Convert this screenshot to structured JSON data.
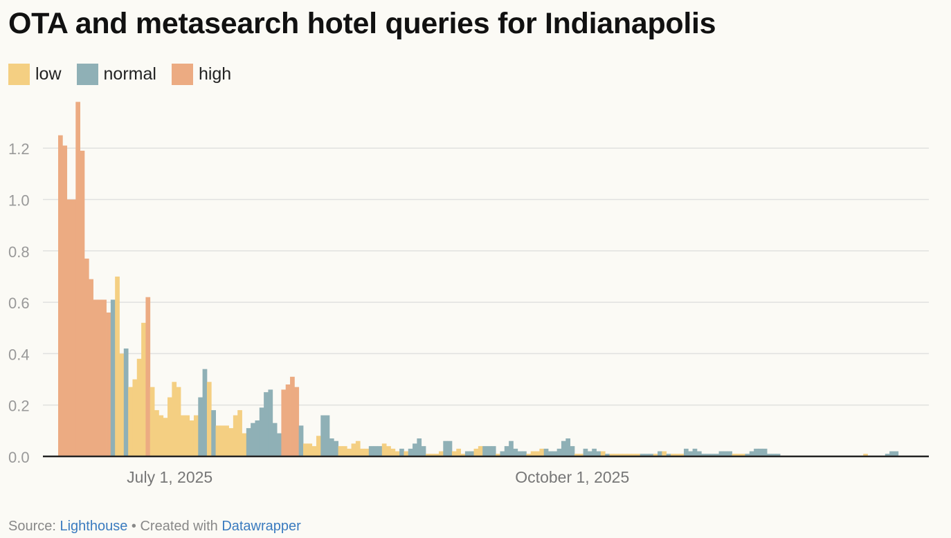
{
  "chart_data": {
    "type": "bar",
    "title": "OTA and metasearch hotel queries for Indianapolis",
    "legend": {
      "placement": "top-left",
      "items": [
        {
          "key": "low",
          "label": "low",
          "color": "#f4cf82"
        },
        {
          "key": "normal",
          "label": "normal",
          "color": "#8fb0b6"
        },
        {
          "key": "high",
          "label": "high",
          "color": "#ecab82"
        }
      ]
    },
    "ylim": [
      0,
      1.38
    ],
    "yticks": [
      {
        "value": 0,
        "label": "0.0"
      },
      {
        "value": 0.2,
        "label": "0.2"
      },
      {
        "value": 0.4,
        "label": "0.4"
      },
      {
        "value": 0.6,
        "label": "0.6"
      },
      {
        "value": 0.8,
        "label": "0.8"
      },
      {
        "value": 1.0,
        "label": "1.0"
      },
      {
        "value": 1.2,
        "label": "1.2"
      }
    ],
    "x_start_date": "2025-06-06",
    "x_end_date": "2025-12-21",
    "xticks": [
      {
        "date": "2025-07-01",
        "label": "July 1, 2025"
      },
      {
        "date": "2025-10-01",
        "label": "October 1, 2025"
      }
    ],
    "grid": true,
    "series": [
      {
        "key": "high",
        "start": "2025-06-06",
        "values": [
          1.25,
          1.21,
          1.0,
          1.0,
          1.38,
          1.19,
          0.77,
          0.69,
          0.61,
          0.61,
          0.61,
          0.56
        ]
      },
      {
        "key": "normal",
        "start": "2025-06-18",
        "values": [
          0.61
        ]
      },
      {
        "key": "low",
        "start": "2025-06-19",
        "values": [
          0.7,
          0.4
        ]
      },
      {
        "key": "normal",
        "start": "2025-06-21",
        "values": [
          0.42
        ]
      },
      {
        "key": "low",
        "start": "2025-06-22",
        "values": [
          0.27,
          0.3,
          0.38,
          0.52
        ]
      },
      {
        "key": "high",
        "start": "2025-06-26",
        "values": [
          0.62
        ]
      },
      {
        "key": "low",
        "start": "2025-06-27",
        "values": [
          0.27,
          0.18,
          0.16,
          0.15,
          0.23,
          0.29,
          0.27,
          0.16,
          0.16,
          0.14,
          0.16
        ]
      },
      {
        "key": "normal",
        "start": "2025-07-08",
        "values": [
          0.23,
          0.34
        ]
      },
      {
        "key": "low",
        "start": "2025-07-10",
        "values": [
          0.29
        ]
      },
      {
        "key": "normal",
        "start": "2025-07-11",
        "values": [
          0.18
        ]
      },
      {
        "key": "low",
        "start": "2025-07-12",
        "values": [
          0.12,
          0.12,
          0.12,
          0.11,
          0.16,
          0.18,
          0.09
        ]
      },
      {
        "key": "normal",
        "start": "2025-07-19",
        "values": [
          0.11,
          0.13,
          0.14,
          0.19,
          0.25,
          0.26,
          0.13,
          0.09
        ]
      },
      {
        "key": "high",
        "start": "2025-07-27",
        "values": [
          0.26,
          0.28,
          0.31,
          0.27
        ]
      },
      {
        "key": "normal",
        "start": "2025-07-31",
        "values": [
          0.12
        ]
      },
      {
        "key": "low",
        "start": "2025-08-01",
        "values": [
          0.05,
          0.05,
          0.04,
          0.08
        ]
      },
      {
        "key": "normal",
        "start": "2025-08-05",
        "values": [
          0.16,
          0.16,
          0.07,
          0.06
        ]
      },
      {
        "key": "low",
        "start": "2025-08-09",
        "values": [
          0.04,
          0.04,
          0.03,
          0.05,
          0.06,
          0.03,
          0.03
        ]
      },
      {
        "key": "normal",
        "start": "2025-08-16",
        "values": [
          0.04,
          0.04,
          0.04
        ]
      },
      {
        "key": "low",
        "start": "2025-08-19",
        "values": [
          0.05,
          0.04,
          0.03,
          0.02
        ]
      },
      {
        "key": "normal",
        "start": "2025-08-23",
        "values": [
          0.03
        ]
      },
      {
        "key": "low",
        "start": "2025-08-24",
        "values": [
          0.02
        ]
      },
      {
        "key": "normal",
        "start": "2025-08-25",
        "values": [
          0.03,
          0.05,
          0.07,
          0.04
        ]
      },
      {
        "key": "low",
        "start": "2025-08-29",
        "values": [
          0.01,
          0.01,
          0.01,
          0.02
        ]
      },
      {
        "key": "normal",
        "start": "2025-09-02",
        "values": [
          0.06,
          0.06
        ]
      },
      {
        "key": "low",
        "start": "2025-09-04",
        "values": [
          0.02,
          0.03,
          0.01
        ]
      },
      {
        "key": "normal",
        "start": "2025-09-07",
        "values": [
          0.02,
          0.02
        ]
      },
      {
        "key": "low",
        "start": "2025-09-09",
        "values": [
          0.03,
          0.04
        ]
      },
      {
        "key": "normal",
        "start": "2025-09-11",
        "values": [
          0.04,
          0.04,
          0.04
        ]
      },
      {
        "key": "low",
        "start": "2025-09-14",
        "values": [
          0.01
        ]
      },
      {
        "key": "normal",
        "start": "2025-09-15",
        "values": [
          0.02,
          0.04,
          0.06,
          0.03,
          0.02,
          0.02
        ]
      },
      {
        "key": "low",
        "start": "2025-09-21",
        "values": [
          0.01,
          0.02,
          0.02,
          0.03
        ]
      },
      {
        "key": "normal",
        "start": "2025-09-25",
        "values": [
          0.03,
          0.02,
          0.02,
          0.03,
          0.06,
          0.07,
          0.04
        ]
      },
      {
        "key": "low",
        "start": "2025-10-02",
        "values": [
          0.01,
          0.01
        ]
      },
      {
        "key": "normal",
        "start": "2025-10-04",
        "values": [
          0.03,
          0.02,
          0.03,
          0.02
        ]
      },
      {
        "key": "low",
        "start": "2025-10-08",
        "values": [
          0.02
        ]
      },
      {
        "key": "normal",
        "start": "2025-10-09",
        "values": [
          0.01
        ]
      },
      {
        "key": "low",
        "start": "2025-10-10",
        "values": [
          0.01,
          0.01,
          0.01,
          0.01,
          0.01,
          0.01,
          0.01
        ]
      },
      {
        "key": "normal",
        "start": "2025-10-17",
        "values": [
          0.01,
          0.01,
          0.01
        ]
      },
      {
        "key": "low",
        "start": "2025-10-20",
        "values": [
          0.01
        ]
      },
      {
        "key": "normal",
        "start": "2025-10-21",
        "values": [
          0.02
        ]
      },
      {
        "key": "low",
        "start": "2025-10-22",
        "values": [
          0.02
        ]
      },
      {
        "key": "normal",
        "start": "2025-10-23",
        "values": [
          0.01
        ]
      },
      {
        "key": "low",
        "start": "2025-10-24",
        "values": [
          0.01,
          0.01,
          0.01
        ]
      },
      {
        "key": "normal",
        "start": "2025-10-27",
        "values": [
          0.03,
          0.02,
          0.03,
          0.02,
          0.01,
          0.01,
          0.01,
          0.01,
          0.02,
          0.02,
          0.02
        ]
      },
      {
        "key": "low",
        "start": "2025-11-07",
        "values": [
          0.01,
          0.01,
          0.01
        ]
      },
      {
        "key": "normal",
        "start": "2025-11-10",
        "values": [
          0.01,
          0.02,
          0.03,
          0.03,
          0.03,
          0.01,
          0.01,
          0.01
        ]
      },
      {
        "key": "low",
        "start": "2025-12-07",
        "values": [
          0.01
        ]
      },
      {
        "key": "normal",
        "start": "2025-12-12",
        "values": [
          0.01,
          0.02,
          0.02
        ]
      }
    ]
  },
  "footer": {
    "source_prefix": "Source: ",
    "source_link": "Lighthouse",
    "separator": " • Created with ",
    "tool_link": "Datawrapper"
  }
}
